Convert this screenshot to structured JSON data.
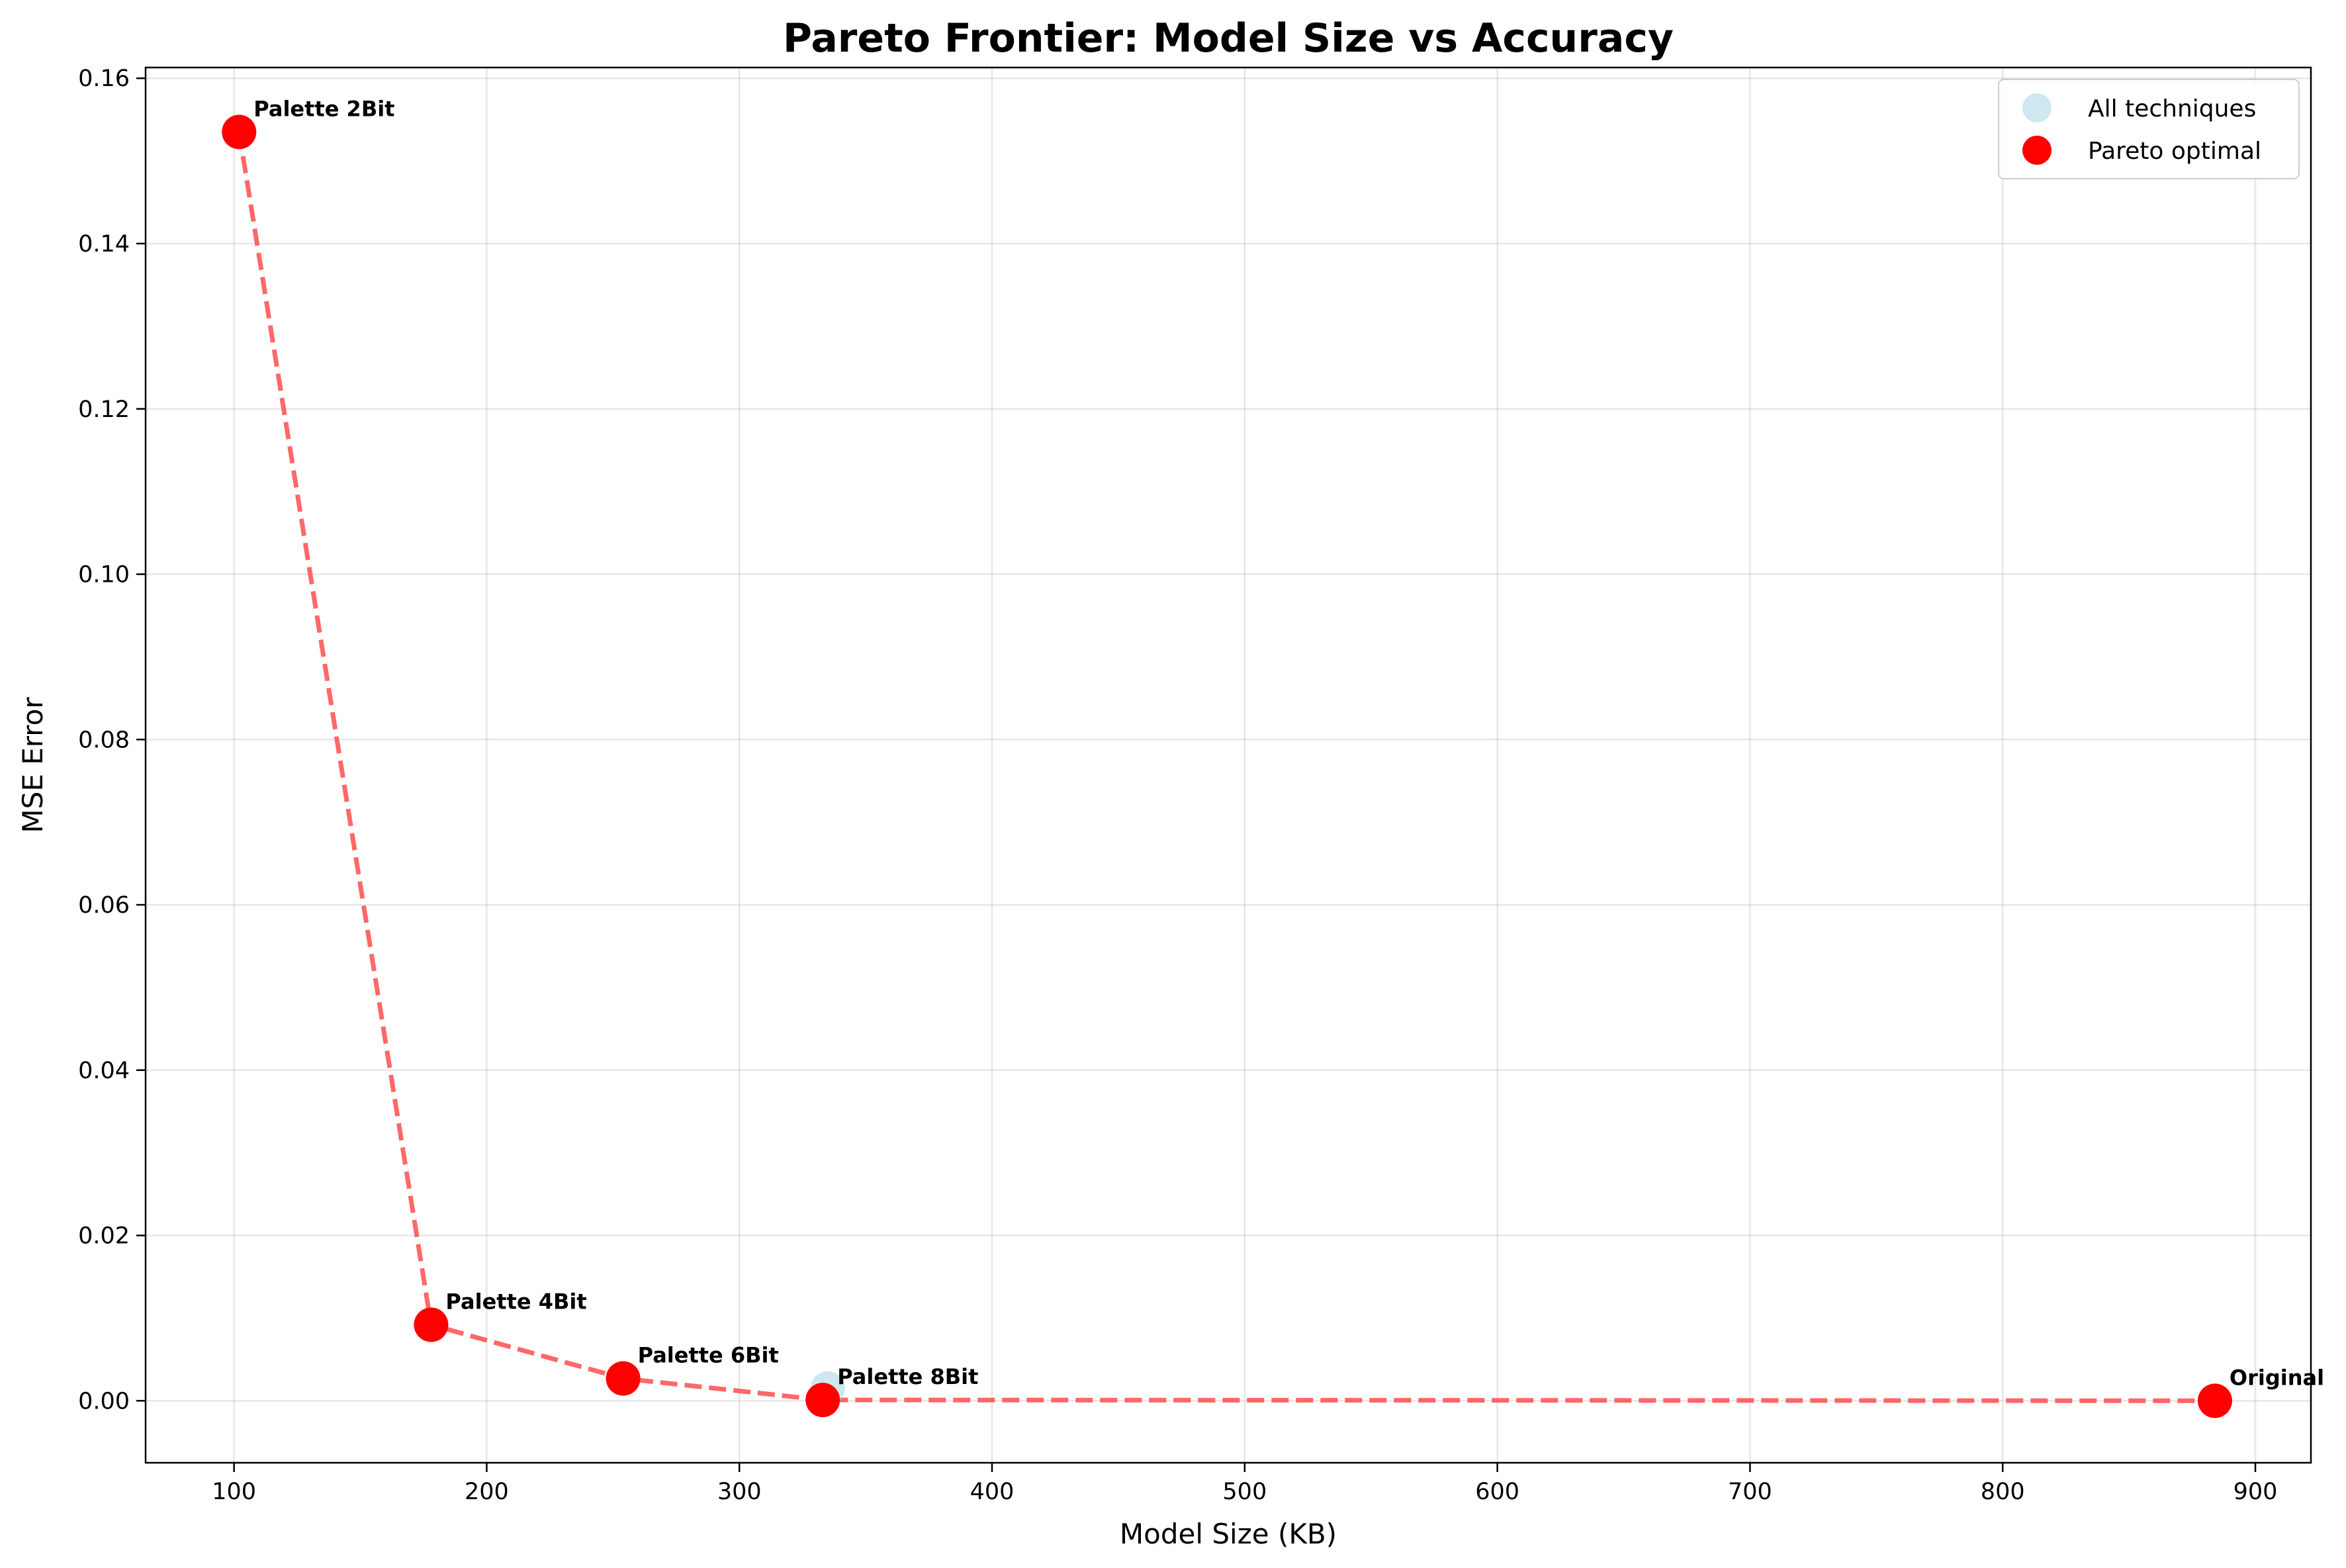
{
  "chart_data": {
    "type": "scatter",
    "title": "Pareto Frontier: Model Size vs Accuracy",
    "xlabel": "Model Size (KB)",
    "ylabel": "MSE Error",
    "xlim": [
      65,
      922
    ],
    "ylim": [
      -0.0075,
      0.1613
    ],
    "xticks": [
      100,
      200,
      300,
      400,
      500,
      600,
      700,
      800,
      900
    ],
    "xtick_labels": [
      "100",
      "200",
      "300",
      "400",
      "500",
      "600",
      "700",
      "800",
      "900"
    ],
    "yticks": [
      0.0,
      0.02,
      0.04,
      0.06,
      0.08,
      0.1,
      0.12,
      0.14,
      0.16
    ],
    "ytick_labels": [
      "0.00",
      "0.02",
      "0.04",
      "0.06",
      "0.08",
      "0.10",
      "0.12",
      "0.14",
      "0.16"
    ],
    "grid": true,
    "legend_position": "top-right",
    "series": [
      {
        "name": "All techniques",
        "color": "#add8e6",
        "points": [
          {
            "x": 102,
            "y": 0.1535
          },
          {
            "x": 178,
            "y": 0.0092
          },
          {
            "x": 254,
            "y": 0.0027
          },
          {
            "x": 335,
            "y": 0.0015
          },
          {
            "x": 884,
            "y": 0.0
          }
        ]
      },
      {
        "name": "Pareto optimal",
        "color": "#ff0000",
        "line_color": "#ff4d4d",
        "line_style": "dashed",
        "points": [
          {
            "x": 102,
            "y": 0.1535,
            "label": "Palette 2Bit"
          },
          {
            "x": 178,
            "y": 0.0092,
            "label": "Palette 4Bit"
          },
          {
            "x": 254,
            "y": 0.0027,
            "label": "Palette 6Bit"
          },
          {
            "x": 333,
            "y": 0.0001,
            "label": "Palette 8Bit"
          },
          {
            "x": 884,
            "y": 0.0,
            "label": "Original"
          }
        ]
      }
    ]
  }
}
